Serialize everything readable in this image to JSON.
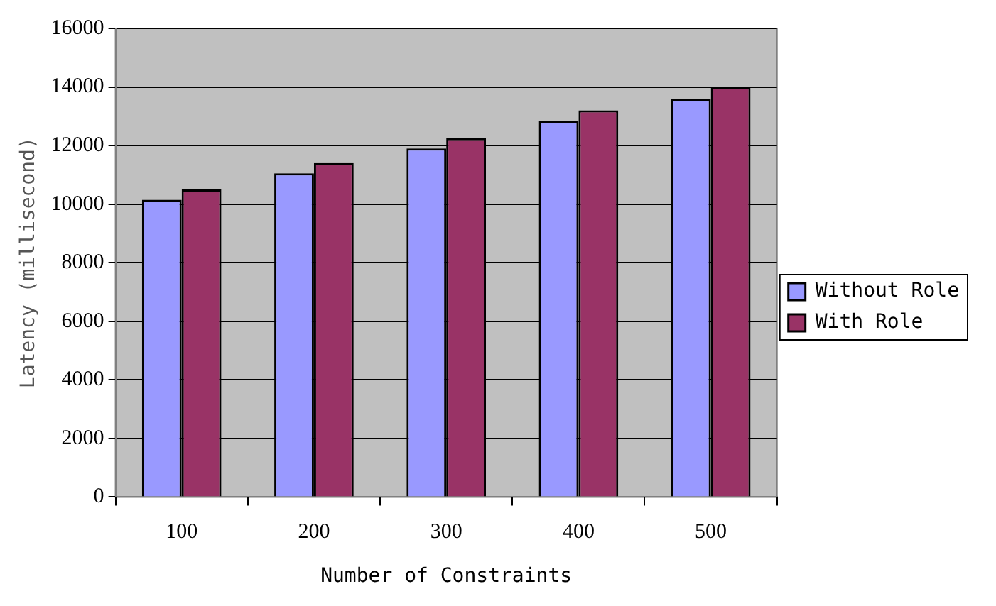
{
  "chart_data": {
    "type": "bar",
    "xlabel": "Number of Constraints",
    "ylabel": "Latency (millisecond)",
    "categories": [
      "100",
      "200",
      "300",
      "400",
      "500"
    ],
    "series": [
      {
        "name": "Without Role",
        "color": "#9999ff",
        "values": [
          10150,
          11050,
          11900,
          12850,
          13600
        ]
      },
      {
        "name": "With Role",
        "color": "#993366",
        "values": [
          10500,
          11400,
          12250,
          13200,
          14000
        ]
      }
    ],
    "ylim": [
      0,
      16000
    ],
    "yticks": [
      0,
      2000,
      4000,
      6000,
      8000,
      10000,
      12000,
      14000,
      16000
    ],
    "grid": "y",
    "legend": "right"
  }
}
